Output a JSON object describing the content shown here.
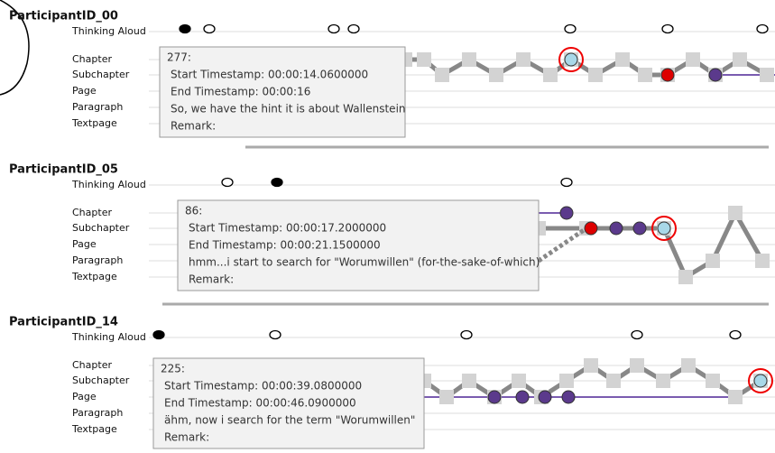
{
  "participants": [
    {
      "id": "ParticipantID_00",
      "rows": [
        "Thinking Aloud",
        "Chapter",
        "Subchapter",
        "Page",
        "Paragraph",
        "Textpage"
      ],
      "tooltip": [
        "277:",
        "Start Timestamp: 00:00:14.0600000",
        "End Timestamp: 00:00:16",
        "So, we have the hint it is about Wallenstein",
        "Remark:"
      ]
    },
    {
      "id": "ParticipantID_05",
      "rows": [
        "Thinking Aloud",
        "Chapter",
        "Subchapter",
        "Page",
        "Paragraph",
        "Textpage"
      ],
      "tooltip": [
        "86:",
        "Start Timestamp: 00:00:17.2000000",
        "End Timestamp: 00:00:21.1500000",
        "hmm...i start to search for \"Worumwillen\" (for-the-sake-of-which)",
        "Remark:"
      ]
    },
    {
      "id": "ParticipantID_14",
      "rows": [
        "Thinking Aloud",
        "Chapter",
        "Subchapter",
        "Page",
        "Paragraph",
        "Textpage"
      ],
      "tooltip": [
        "225:",
        "Start Timestamp: 00:00:39.0800000",
        "End Timestamp: 00:00:46.0900000",
        "ähm, now i search for the term \"Worumwillen\"",
        "Remark:"
      ]
    }
  ]
}
